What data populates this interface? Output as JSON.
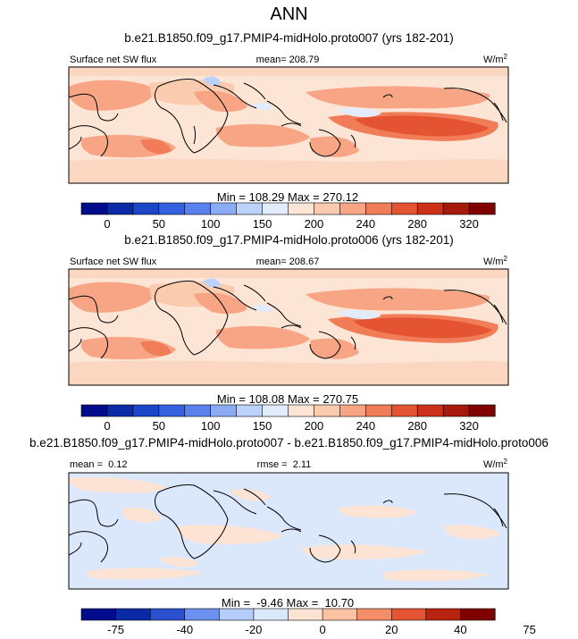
{
  "title": "ANN",
  "chart_data": [
    {
      "type": "heatmap",
      "panel_title": "b.e21.B1850.f09_g17.PMIP4-midHolo.proto007 (yrs 182-201)",
      "variable_label": "Surface net SW flux",
      "mean_label": "mean= 208.79",
      "units": "W/m",
      "units_sup": "2",
      "minmax_label": "Min = 108.29 Max = 270.12",
      "colorbar": {
        "levels": [
          "0",
          "50",
          "100",
          "150",
          "200",
          "240",
          "280",
          "320"
        ],
        "colors": [
          "#000c8c",
          "#0a2aa8",
          "#1a46c8",
          "#3461e0",
          "#5a82ee",
          "#8cabf5",
          "#bcd2fa",
          "#e2ecfc",
          "#fde5d6",
          "#fbcbb0",
          "#f7a585",
          "#f07c58",
          "#e55432",
          "#cc3018",
          "#a61a0c",
          "#800000"
        ]
      }
    },
    {
      "type": "heatmap",
      "panel_title": "b.e21.B1850.f09_g17.PMIP4-midHolo.proto006 (yrs 182-201)",
      "variable_label": "Surface net SW flux",
      "mean_label": "mean= 208.67",
      "units": "W/m",
      "units_sup": "2",
      "minmax_label": "Min = 108.08 Max = 270.75",
      "colorbar": {
        "levels": [
          "0",
          "50",
          "100",
          "150",
          "200",
          "240",
          "280",
          "320"
        ],
        "colors": [
          "#000c8c",
          "#0a2aa8",
          "#1a46c8",
          "#3461e0",
          "#5a82ee",
          "#8cabf5",
          "#bcd2fa",
          "#e2ecfc",
          "#fde5d6",
          "#fbcbb0",
          "#f7a585",
          "#f07c58",
          "#e55432",
          "#cc3018",
          "#a61a0c",
          "#800000"
        ]
      }
    },
    {
      "type": "heatmap",
      "panel_title": "b.e21.B1850.f09_g17.PMIP4-midHolo.proto007 - b.e21.B1850.f09_g17.PMIP4-midHolo.proto006",
      "mean_label": "mean =  0.12",
      "rmse_label": "rmse =  2.11",
      "units": "W/m",
      "units_sup": "2",
      "minmax_label": "Min =  -9.46 Max =  10.70",
      "colorbar": {
        "levels": [
          "-75",
          "-40",
          "-20",
          "0",
          "20",
          "40",
          "75"
        ],
        "colors": [
          "#000c8c",
          "#0a2aa8",
          "#2a50d0",
          "#6b90ef",
          "#b4cdfa",
          "#dbe8fc",
          "#fde3d3",
          "#fbc2a4",
          "#f38e68",
          "#e55432",
          "#b82410",
          "#800000"
        ]
      }
    }
  ]
}
